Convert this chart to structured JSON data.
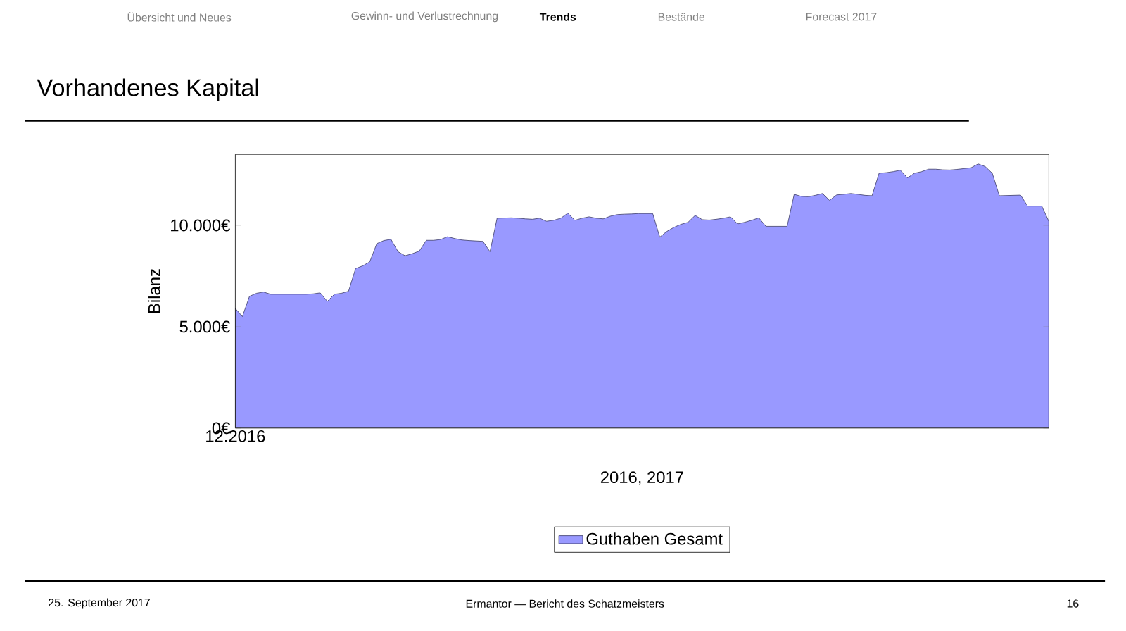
{
  "chart_data": {
    "type": "area",
    "title": "Vorhandenes Kapital",
    "xlabel": "2016, 2017",
    "ylabel": "Bilanz",
    "categories": [
      "12.2016",
      null,
      null,
      null,
      null,
      null,
      null,
      null,
      null,
      null,
      null,
      null,
      null,
      null,
      null,
      null,
      null,
      null,
      null,
      null,
      null,
      null,
      null,
      null,
      null,
      null,
      null,
      null,
      null,
      null,
      null,
      null,
      null,
      null,
      null,
      null,
      null,
      null,
      null,
      null,
      null,
      null,
      null,
      null,
      null,
      null,
      null,
      null,
      null,
      null,
      null,
      null,
      null,
      null,
      null,
      null,
      null,
      null,
      null,
      null,
      null,
      null,
      null,
      null,
      null,
      null,
      null,
      null,
      null,
      null,
      null,
      null,
      null,
      null,
      null,
      null,
      null,
      null,
      null,
      null,
      null,
      null,
      null,
      null,
      null,
      null,
      null,
      null,
      null,
      null,
      null,
      null,
      null,
      null,
      null,
      null,
      null,
      null,
      null,
      null,
      null,
      null,
      null,
      null,
      null,
      null,
      null,
      null,
      null,
      null,
      null,
      null,
      null,
      null,
      null,
      null
    ],
    "series": [
      {
        "name": "Guthaben Gesamt",
        "color": "#9999ff",
        "values": [
          5900,
          5500,
          6500,
          6650,
          6710,
          6600,
          6600,
          6600,
          6600,
          6600,
          6600,
          6620,
          6670,
          6250,
          6600,
          6650,
          6750,
          7870,
          8000,
          8200,
          9100,
          9250,
          9310,
          8700,
          8500,
          8600,
          8730,
          9260,
          9260,
          9300,
          9440,
          9350,
          9280,
          9250,
          9230,
          9210,
          8700,
          10350,
          10360,
          10370,
          10350,
          10320,
          10300,
          10350,
          10200,
          10250,
          10350,
          10600,
          10250,
          10350,
          10420,
          10350,
          10320,
          10450,
          10530,
          10550,
          10560,
          10580,
          10580,
          10580,
          9420,
          9700,
          9900,
          10050,
          10150,
          10490,
          10280,
          10260,
          10300,
          10350,
          10420,
          10070,
          10150,
          10250,
          10370,
          9950,
          9950,
          9950,
          9950,
          11530,
          11430,
          11410,
          11480,
          11570,
          11230,
          11500,
          11530,
          11570,
          11530,
          11480,
          11460,
          12570,
          12600,
          12650,
          12720,
          12340,
          12570,
          12650,
          12770,
          12770,
          12740,
          12730,
          12760,
          12800,
          12840,
          13030,
          12900,
          12570,
          11460,
          11470,
          11480,
          11490,
          10950,
          10950,
          10950,
          10190
        ]
      }
    ],
    "ylim": [
      0,
      13500
    ],
    "yticks": [
      {
        "value": 0,
        "label": "0€"
      },
      {
        "value": 5000,
        "label": "5.000€"
      },
      {
        "value": 10000,
        "label": "10.000€"
      }
    ],
    "legend": "bottom",
    "annotations": [
      "Übersicht und Neues",
      "Gewinn- und Verlustrechnung",
      "Trends",
      "Bestände",
      "Forecast 2017",
      "25. September 2017",
      "Ermantor — Bericht des Schatzmeisters",
      "16"
    ]
  }
}
